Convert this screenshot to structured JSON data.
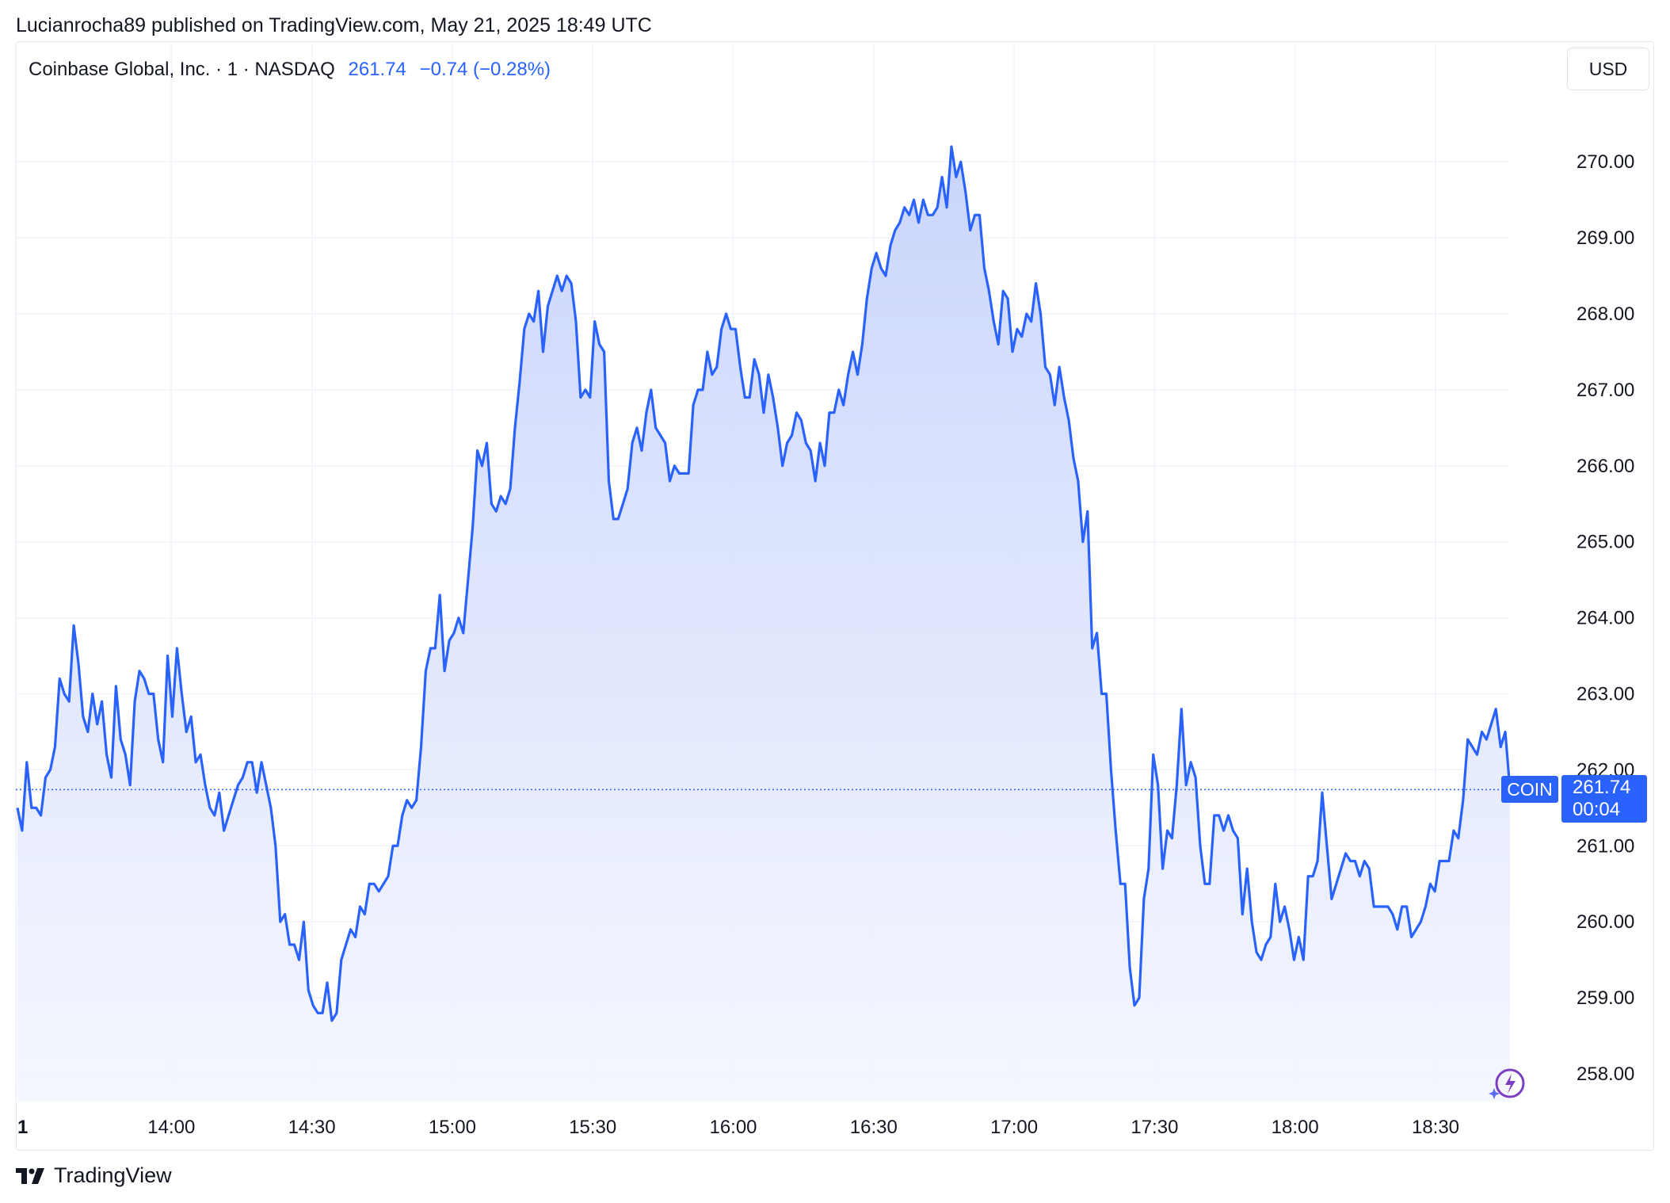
{
  "header": {
    "text": "Lucianrocha89 published on TradingView.com, May 21, 2025 18:49 UTC"
  },
  "legend": {
    "symbol": "Coinbase Global, Inc. · 1 · NASDAQ",
    "price": "261.74",
    "change": "−0.74 (−0.28%)"
  },
  "currency": "USD",
  "price_tag": {
    "symbol": "COIN",
    "price": "261.74",
    "countdown": "00:04"
  },
  "footer": {
    "brand": "TradingView",
    "logo_icon": "tradingview-logo-icon"
  },
  "colors": {
    "line": "#2962ff",
    "fill_top": "#c7d3fc",
    "fill_bottom": "#f4f6fe",
    "grid": "#f0f3fa"
  },
  "chart_data": {
    "type": "area",
    "ylim": [
      257.6,
      270.8
    ],
    "y_ticks": [
      "270.00",
      "269.00",
      "268.00",
      "267.00",
      "266.00",
      "265.00",
      "264.00",
      "263.00",
      "262.00",
      "261.00",
      "260.00",
      "259.00",
      "258.00"
    ],
    "x_ticks": [
      "1",
      "14:00",
      "14:30",
      "15:00",
      "15:30",
      "16:00",
      "16:30",
      "17:00",
      "17:30",
      "18:00",
      "18:30"
    ],
    "last_value": 261.74,
    "values": [
      261.5,
      261.2,
      262.1,
      261.5,
      261.5,
      261.4,
      261.9,
      262.0,
      262.3,
      263.2,
      263.0,
      262.9,
      263.9,
      263.4,
      262.7,
      262.5,
      263.0,
      262.6,
      262.9,
      262.2,
      261.9,
      263.1,
      262.4,
      262.2,
      261.8,
      262.9,
      263.3,
      263.2,
      263.0,
      263.0,
      262.4,
      262.1,
      263.5,
      262.7,
      263.6,
      263.0,
      262.5,
      262.7,
      262.1,
      262.2,
      261.8,
      261.5,
      261.4,
      261.7,
      261.2,
      261.4,
      261.6,
      261.8,
      261.9,
      262.1,
      262.1,
      261.7,
      262.1,
      261.8,
      261.5,
      261.0,
      260.0,
      260.1,
      259.7,
      259.7,
      259.5,
      260.0,
      259.1,
      258.9,
      258.8,
      258.8,
      259.2,
      258.7,
      258.8,
      259.5,
      259.7,
      259.9,
      259.8,
      260.2,
      260.1,
      260.5,
      260.5,
      260.4,
      260.5,
      260.6,
      261.0,
      261.0,
      261.4,
      261.6,
      261.5,
      261.6,
      262.3,
      263.3,
      263.6,
      263.6,
      264.3,
      263.3,
      263.7,
      263.8,
      264.0,
      263.8,
      264.5,
      265.2,
      266.2,
      266.0,
      266.3,
      265.5,
      265.4,
      265.6,
      265.5,
      265.7,
      266.5,
      267.1,
      267.8,
      268.0,
      267.9,
      268.3,
      267.5,
      268.1,
      268.3,
      268.5,
      268.3,
      268.5,
      268.4,
      267.9,
      266.9,
      267.0,
      266.9,
      267.9,
      267.6,
      267.5,
      265.8,
      265.3,
      265.3,
      265.5,
      265.7,
      266.3,
      266.5,
      266.2,
      266.7,
      267.0,
      266.5,
      266.4,
      266.3,
      265.8,
      266.0,
      265.9,
      265.9,
      265.9,
      266.8,
      267.0,
      267.0,
      267.5,
      267.2,
      267.3,
      267.8,
      268.0,
      267.8,
      267.8,
      267.3,
      266.9,
      266.9,
      267.4,
      267.2,
      266.7,
      267.2,
      266.9,
      266.5,
      266.0,
      266.3,
      266.4,
      266.7,
      266.6,
      266.3,
      266.2,
      265.8,
      266.3,
      266.0,
      266.7,
      266.7,
      267.0,
      266.8,
      267.2,
      267.5,
      267.2,
      267.6,
      268.2,
      268.6,
      268.8,
      268.6,
      268.5,
      268.9,
      269.1,
      269.2,
      269.4,
      269.3,
      269.5,
      269.2,
      269.5,
      269.3,
      269.3,
      269.4,
      269.8,
      269.4,
      270.2,
      269.8,
      270.0,
      269.6,
      269.1,
      269.3,
      269.3,
      268.6,
      268.3,
      267.9,
      267.6,
      268.3,
      268.2,
      267.5,
      267.8,
      267.7,
      268.0,
      267.9,
      268.4,
      268.0,
      267.3,
      267.2,
      266.8,
      267.3,
      266.9,
      266.6,
      266.1,
      265.8,
      265.0,
      265.4,
      263.6,
      263.8,
      263.0,
      263.0,
      262.0,
      261.2,
      260.5,
      260.5,
      259.4,
      258.9,
      259.0,
      260.3,
      260.7,
      262.2,
      261.8,
      260.7,
      261.2,
      261.1,
      261.8,
      262.8,
      261.8,
      262.1,
      261.9,
      261.0,
      260.5,
      260.5,
      261.4,
      261.4,
      261.2,
      261.4,
      261.2,
      261.1,
      260.1,
      260.7,
      260.0,
      259.6,
      259.5,
      259.7,
      259.8,
      260.5,
      260.0,
      260.2,
      259.9,
      259.5,
      259.8,
      259.5,
      260.6,
      260.6,
      260.8,
      261.7,
      261.0,
      260.3,
      260.5,
      260.7,
      260.9,
      260.8,
      260.8,
      260.6,
      260.8,
      260.7,
      260.2,
      260.2,
      260.2,
      260.2,
      260.1,
      259.9,
      260.2,
      260.2,
      259.8,
      259.9,
      260.0,
      260.2,
      260.5,
      260.4,
      260.8,
      260.8,
      260.8,
      261.2,
      261.1,
      261.6,
      262.4,
      262.3,
      262.2,
      262.5,
      262.4,
      262.6,
      262.8,
      262.3,
      262.5,
      261.74
    ]
  }
}
